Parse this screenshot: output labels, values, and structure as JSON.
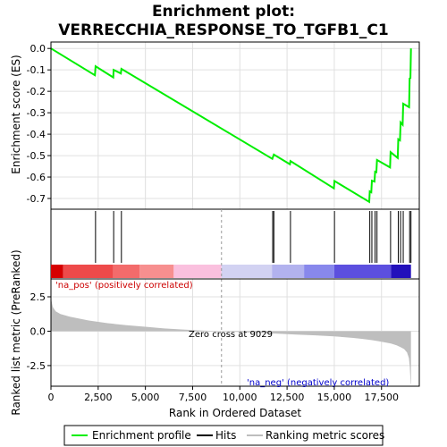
{
  "chart_data": {
    "type": "line",
    "title_line1": "Enrichment plot:",
    "title_line2": "VERRECCHIA_RESPONSE_TO_TGFB1_C1",
    "xlabel": "Rank in Ordered Dataset",
    "ylabel_top": "Enrichment score (ES)",
    "ylabel_bottom": "Ranked list metric (PreRanked)",
    "xlim": [
      0,
      19500
    ],
    "x_ticks": [
      0,
      2500,
      5000,
      7500,
      10000,
      12500,
      15000,
      17500
    ],
    "x_tick_labels": [
      "0",
      "2,500",
      "5,000",
      "7,500",
      "10,000",
      "12,500",
      "15,000",
      "17,500"
    ],
    "es_ylim": [
      -0.75,
      0.03
    ],
    "es_ticks": [
      0.0,
      -0.1,
      -0.2,
      -0.3,
      -0.4,
      -0.5,
      -0.6,
      -0.7
    ],
    "es_tick_labels": [
      "0.0",
      "-0.1",
      "-0.2",
      "-0.3",
      "-0.4",
      "-0.5",
      "-0.6",
      "-0.7"
    ],
    "metric_ylim": [
      -4.0,
      3.8
    ],
    "metric_ticks": [
      2.5,
      0.0,
      -2.5
    ],
    "metric_tick_labels": [
      "2.5",
      "0.0",
      "-2.5"
    ],
    "grid": true,
    "enrichment_profile": {
      "x": [
        0,
        2330,
        2360,
        3300,
        3320,
        3700,
        3730,
        11720,
        11800,
        12650,
        12680,
        14980,
        15010,
        16850,
        16880,
        16960,
        16990,
        17130,
        17160,
        17230,
        17260,
        17950,
        17980,
        18360,
        18390,
        18480,
        18510,
        18620,
        18650,
        18960,
        18990,
        19030,
        19060
      ],
      "es": [
        0.0,
        -0.125,
        -0.083,
        -0.135,
        -0.1,
        -0.117,
        -0.095,
        -0.515,
        -0.495,
        -0.54,
        -0.525,
        -0.653,
        -0.618,
        -0.716,
        -0.667,
        -0.671,
        -0.617,
        -0.621,
        -0.575,
        -0.577,
        -0.52,
        -0.555,
        -0.484,
        -0.511,
        -0.424,
        -0.429,
        -0.345,
        -0.356,
        -0.258,
        -0.274,
        -0.14,
        -0.138,
        0.0
      ]
    },
    "hits": [
      2360,
      3320,
      3730,
      11740,
      11800,
      12680,
      15010,
      16880,
      16990,
      17160,
      17260,
      17980,
      18390,
      18510,
      18650,
      18990,
      19060
    ],
    "metric_curve": {
      "x": [
        0,
        30,
        100,
        250,
        500,
        1000,
        2000,
        3000,
        4000,
        5000,
        6000,
        7000,
        8000,
        9029,
        10000,
        11000,
        12000,
        13000,
        14000,
        15000,
        15500,
        16000,
        16500,
        17000,
        17500,
        18000,
        18300,
        18500,
        18700,
        18850,
        18950,
        19000,
        19040,
        19060
      ],
      "metric": [
        3.6,
        2.2,
        1.75,
        1.45,
        1.25,
        1.05,
        0.78,
        0.58,
        0.44,
        0.32,
        0.2,
        0.12,
        0.05,
        0.0,
        -0.06,
        -0.12,
        -0.18,
        -0.24,
        -0.3,
        -0.38,
        -0.43,
        -0.49,
        -0.56,
        -0.65,
        -0.76,
        -0.9,
        -1.02,
        -1.15,
        -1.3,
        -1.55,
        -1.95,
        -2.6,
        -3.8,
        -3.9
      ]
    },
    "heatmap_segments": [
      {
        "x0": 0,
        "x1": 650,
        "color": "#d60000"
      },
      {
        "x0": 650,
        "x1": 3300,
        "color": "#ee4a4a"
      },
      {
        "x0": 3300,
        "x1": 4700,
        "color": "#f36b6b"
      },
      {
        "x0": 4700,
        "x1": 6500,
        "color": "#f78f8f"
      },
      {
        "x0": 6500,
        "x1": 9029,
        "color": "#fac0de"
      },
      {
        "x0": 9029,
        "x1": 11700,
        "color": "#d2d2f2"
      },
      {
        "x0": 11700,
        "x1": 13400,
        "color": "#b2b2ee"
      },
      {
        "x0": 13400,
        "x1": 15000,
        "color": "#8888ec"
      },
      {
        "x0": 15000,
        "x1": 18000,
        "color": "#5c4fdf"
      },
      {
        "x0": 18000,
        "x1": 19060,
        "color": "#2210bb"
      }
    ],
    "zero_cross_label": "Zero cross at 9029",
    "zero_cross": 9029,
    "pos_label": "'na_pos' (positively correlated)",
    "neg_label": "'na_neg' (negatively correlated)",
    "legend": [
      {
        "label": "Enrichment profile",
        "color": "#00ee00"
      },
      {
        "label": "Hits",
        "color": "#000000"
      },
      {
        "label": "Ranking metric scores",
        "color": "#bebebe"
      }
    ],
    "colors": {
      "profile": "#00ee00",
      "hits": "#000000",
      "metric_fill": "#bebebe",
      "grid": "#e0e0e0",
      "pos_text": "#cc0000",
      "neg_text": "#0000cc",
      "zero_line": "#999999"
    }
  }
}
